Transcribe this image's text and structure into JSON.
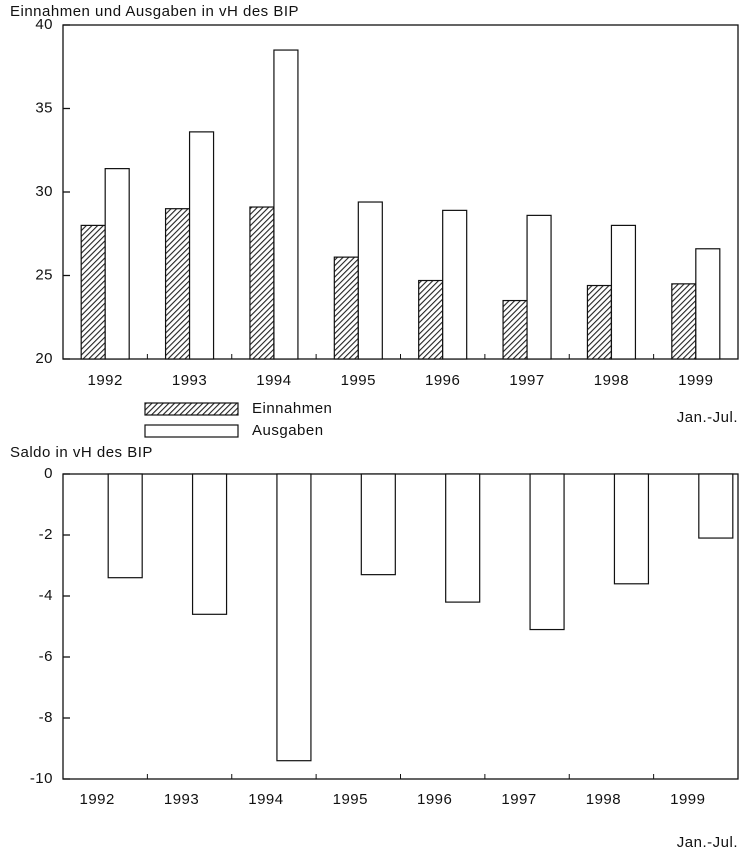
{
  "chart_data": [
    {
      "type": "bar",
      "title": "Einnahmen und Ausgaben in vH des BIP",
      "categories": [
        "1992",
        "1993",
        "1994",
        "1995",
        "1996",
        "1997",
        "1998",
        "1999"
      ],
      "annotation": "Jan.-Jul.",
      "series": [
        {
          "name": "Einnahmen",
          "color": "#222222",
          "values": [
            28.0,
            29.0,
            29.1,
            26.1,
            24.7,
            23.5,
            24.4,
            24.5
          ]
        },
        {
          "name": "Ausgaben",
          "color": "#ffffff",
          "values": [
            31.4,
            33.6,
            38.5,
            29.4,
            28.9,
            28.6,
            28.0,
            26.6
          ]
        }
      ],
      "ylim": [
        20,
        40
      ],
      "yticks": [
        20,
        25,
        30,
        35,
        40
      ]
    },
    {
      "type": "bar",
      "title": "Saldo in vH des BIP",
      "categories": [
        "1992",
        "1993",
        "1994",
        "1995",
        "1996",
        "1997",
        "1998",
        "1999"
      ],
      "annotation": "Jan.-Jul.",
      "values": [
        -3.4,
        -4.6,
        -9.4,
        -3.3,
        -4.2,
        -5.1,
        -3.6,
        -2.1
      ],
      "color": "#ffffff",
      "ylim": [
        -10,
        0
      ],
      "yticks": [
        -10,
        -8,
        -6,
        -4,
        -2,
        0
      ]
    }
  ]
}
